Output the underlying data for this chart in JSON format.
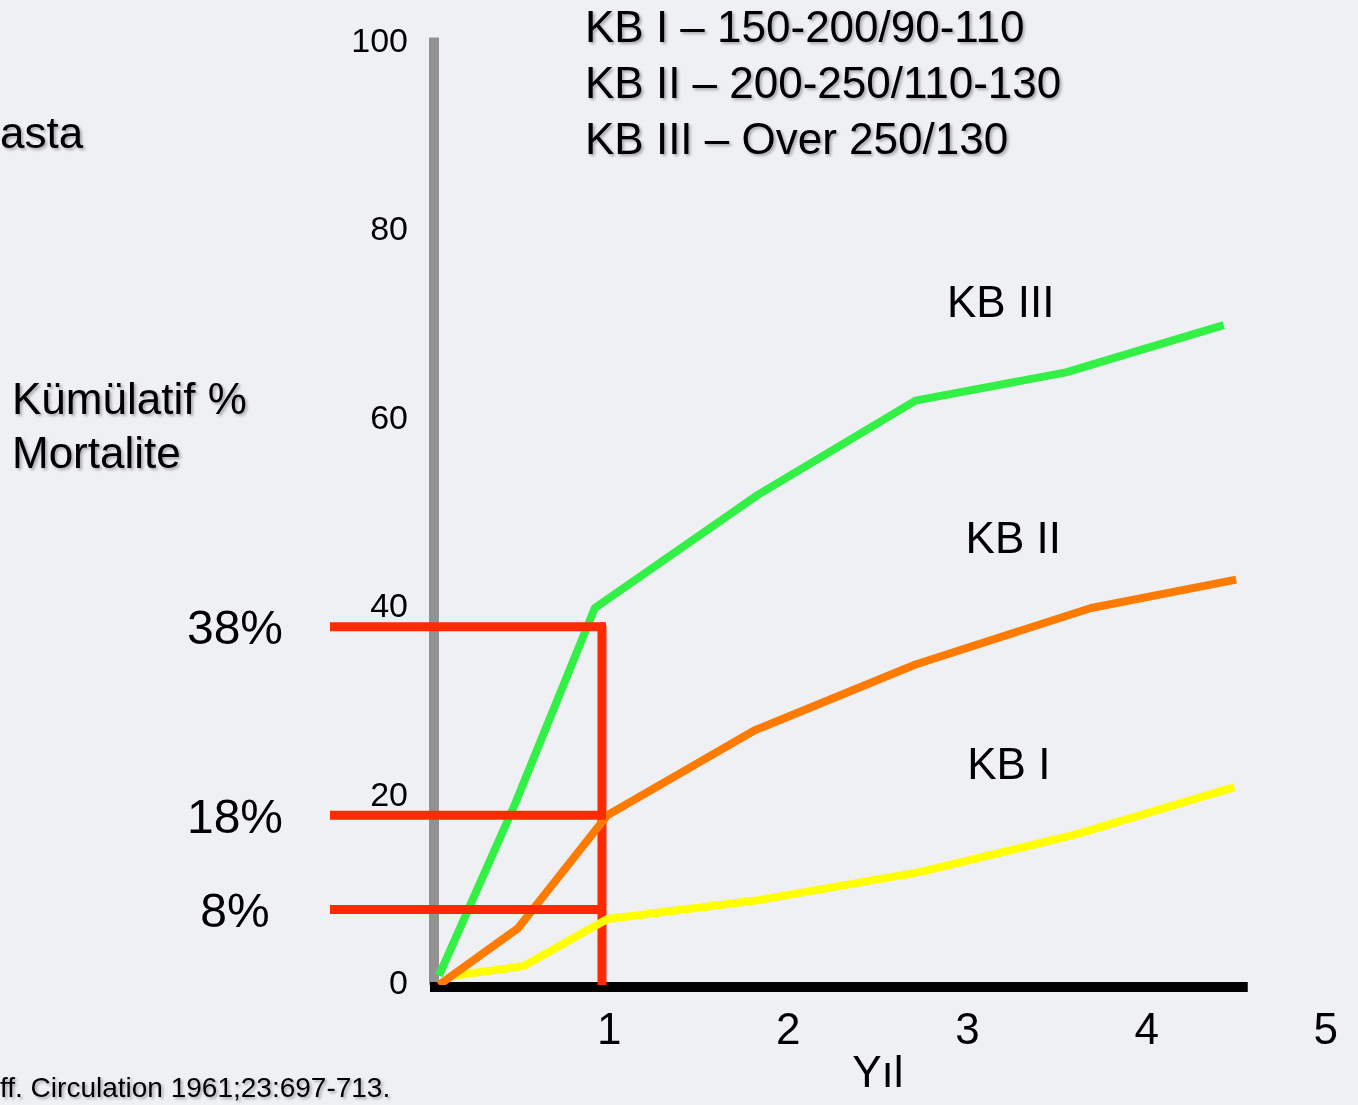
{
  "chart_data": {
    "type": "line",
    "xlabel": "Yıl",
    "ylabel": "Kümülatif % Mortalite",
    "xlim": [
      0,
      5
    ],
    "xticks": [
      1,
      2,
      3,
      4,
      5
    ],
    "ylim": [
      0,
      100
    ],
    "yticks": [
      0,
      20,
      40,
      60,
      80,
      100
    ],
    "grid": false,
    "legend": false,
    "marker": "none",
    "line_style": "solid",
    "series": [
      {
        "name": "KB III",
        "color": "#33f046",
        "x": [
          0.05,
          0.47,
          0.92,
          1.83,
          2.71,
          3.55,
          4.43
        ],
        "values": [
          1,
          19,
          40,
          52,
          62,
          65,
          70
        ]
      },
      {
        "name": "KB II",
        "color": "#ff7a00",
        "x": [
          0.05,
          0.49,
          0.99,
          1.81,
          2.71,
          3.69,
          4.5
        ],
        "values": [
          0,
          6,
          18,
          27,
          34,
          40,
          43
        ]
      },
      {
        "name": "KB I",
        "color": "#ffff00",
        "x": [
          0.14,
          0.52,
          0.99,
          1.83,
          2.74,
          3.61,
          4.49
        ],
        "values": [
          1,
          2,
          7,
          9,
          12,
          16,
          21
        ]
      },
      {
        "type": "line",
        "color": "#ff2a00",
        "x": [
          0.96,
          0.96
        ],
        "values": [
          38,
          0
        ]
      }
    ],
    "ref_lines": [
      {
        "axis": "y",
        "value": 38,
        "label": "38%",
        "color": "#ff2a00"
      },
      {
        "axis": "y",
        "value": 18,
        "label": "18%",
        "color": "#ff2a00"
      },
      {
        "axis": "y",
        "value": 8,
        "label": "8%",
        "color": "#ff2a00"
      }
    ],
    "annotations": [
      "KB I – 150-200/90-110",
      "KB II – 200-250/110-130",
      "KB III – Over 250/130",
      "asta",
      "ff. Circulation 1961;23:697-713."
    ]
  }
}
